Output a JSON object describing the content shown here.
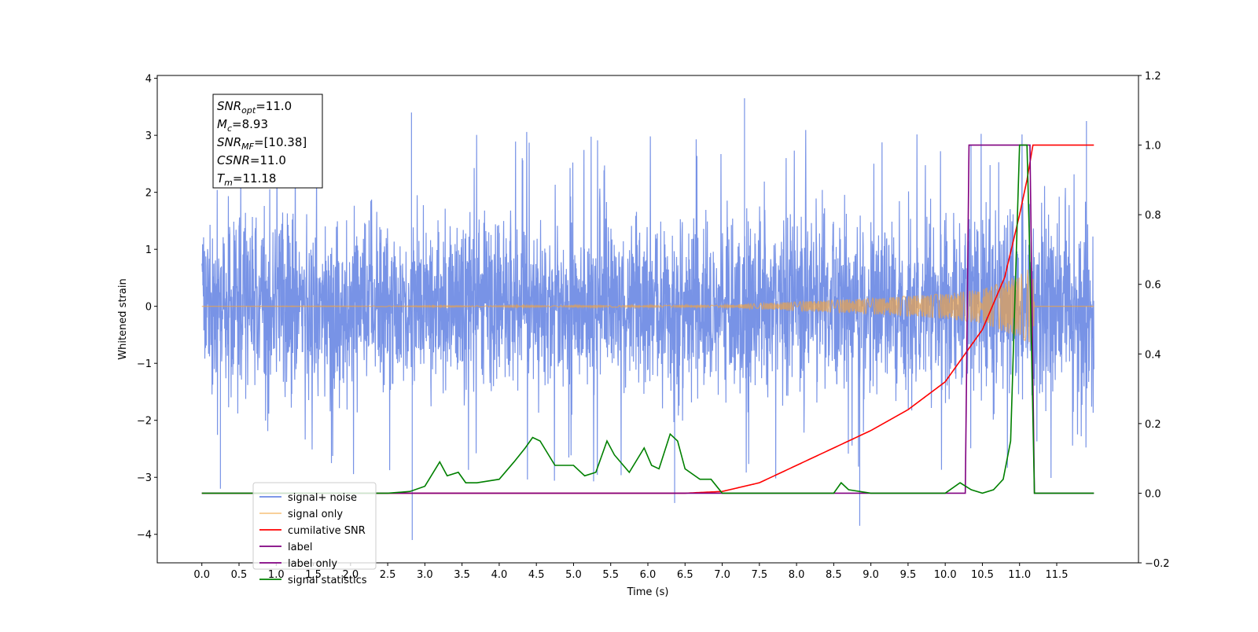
{
  "chart_data": {
    "type": "line",
    "xlabel": "Time (s)",
    "ylabel": "Whitened strain",
    "xlim": [
      -0.6,
      12.6
    ],
    "ylim": [
      -4.5,
      4.05
    ],
    "y2lim": [
      -0.2,
      1.2
    ],
    "xticks": [
      0.0,
      0.5,
      1.0,
      1.5,
      2.0,
      2.5,
      3.0,
      3.5,
      4.0,
      4.5,
      5.0,
      5.5,
      6.0,
      6.5,
      7.0,
      7.5,
      8.0,
      8.5,
      9.0,
      9.5,
      10.0,
      10.5,
      11.0,
      11.5
    ],
    "xtick_labels": [
      "0.0",
      "0.5",
      "1.0",
      "1.5",
      "2.0",
      "2.5",
      "3.0",
      "3.5",
      "4.0",
      "4.5",
      "5.0",
      "5.5",
      "6.0",
      "6.5",
      "7.0",
      "7.5",
      "8.0",
      "8.5",
      "9.0",
      "9.5",
      "10.0",
      "10.5",
      "11.0",
      "11.5"
    ],
    "yticks": [
      -4,
      -3,
      -2,
      -1,
      0,
      1,
      2,
      3,
      4
    ],
    "ytick_labels": [
      "−4",
      "−3",
      "−2",
      "−1",
      "0",
      "1",
      "2",
      "3",
      "4"
    ],
    "y2ticks": [
      -0.2,
      0.0,
      0.2,
      0.4,
      0.6,
      0.8,
      1.0,
      1.2
    ],
    "y2tick_labels": [
      "−0.2",
      "0.0",
      "0.2",
      "0.4",
      "0.6",
      "0.8",
      "1.0",
      "1.2"
    ],
    "grid": false,
    "legend_position": "bottom-left",
    "annotation_lines": [
      {
        "var": "SNR",
        "sub": "opt",
        "value": "=11.0"
      },
      {
        "var": "M",
        "sub": "c",
        "value": "=8.93"
      },
      {
        "var": "SNR",
        "sub": "MF",
        "value": "=[10.38]"
      },
      {
        "var": "CSNR",
        "sub": "",
        "value": "=11.0"
      },
      {
        "var": "T",
        "sub": "m",
        "value": "=11.18"
      }
    ],
    "series": [
      {
        "name": "signal+ noise",
        "axis": "left",
        "color": "#6c8ae4",
        "x_range": [
          0.0,
          12.0
        ],
        "amplitude_envelope": 2.1,
        "notable_peaks": [
          [
            0.25,
            -3.2
          ],
          [
            2.82,
            3.4
          ],
          [
            2.83,
            -4.1
          ],
          [
            7.3,
            3.65
          ],
          [
            8.85,
            -3.85
          ],
          [
            6.36,
            -3.45
          ],
          [
            11.9,
            3.25
          ]
        ]
      },
      {
        "name": "signal only",
        "axis": "left",
        "color": "#f2a540",
        "x": [
          0.0,
          7.0,
          8.0,
          9.0,
          10.0,
          10.5,
          11.0,
          11.18,
          11.2,
          12.0
        ],
        "envelope": [
          0.0,
          0.02,
          0.08,
          0.14,
          0.22,
          0.3,
          0.55,
          0.7,
          0.0,
          0.0
        ]
      },
      {
        "name": "cumilative SNR",
        "axis": "right",
        "color": "#ff0000",
        "x": [
          0.0,
          6.5,
          7.0,
          7.5,
          8.0,
          8.5,
          9.0,
          9.5,
          10.0,
          10.5,
          10.8,
          11.0,
          11.1,
          11.18,
          12.0
        ],
        "y": [
          0.0,
          0.0,
          0.005,
          0.03,
          0.08,
          0.13,
          0.18,
          0.24,
          0.32,
          0.47,
          0.62,
          0.8,
          0.9,
          1.0,
          1.0
        ]
      },
      {
        "name": "label",
        "axis": "right",
        "color": "#800080",
        "x": [
          0.0,
          10.27,
          10.32,
          11.14,
          11.2,
          12.0
        ],
        "y": [
          0.0,
          0.0,
          1.0,
          1.0,
          0.0,
          0.0
        ]
      },
      {
        "name": "label only",
        "axis": "right",
        "color": "#800080",
        "x": [],
        "y": []
      },
      {
        "name": "signal statistics",
        "axis": "right",
        "color": "#008000",
        "x": [
          0.0,
          2.5,
          2.8,
          3.0,
          3.2,
          3.3,
          3.45,
          3.55,
          3.7,
          4.0,
          4.2,
          4.35,
          4.45,
          4.55,
          4.75,
          5.0,
          5.15,
          5.3,
          5.45,
          5.55,
          5.75,
          5.95,
          6.05,
          6.15,
          6.3,
          6.4,
          6.5,
          6.7,
          6.85,
          7.0,
          8.5,
          8.6,
          8.7,
          9.0,
          10.0,
          10.2,
          10.35,
          10.5,
          10.65,
          10.78,
          10.88,
          11.0,
          11.1,
          11.13,
          11.2,
          12.0
        ],
        "y": [
          0.0,
          0.0,
          0.005,
          0.02,
          0.09,
          0.05,
          0.06,
          0.03,
          0.03,
          0.04,
          0.09,
          0.13,
          0.16,
          0.15,
          0.08,
          0.08,
          0.05,
          0.06,
          0.15,
          0.11,
          0.06,
          0.13,
          0.08,
          0.07,
          0.17,
          0.15,
          0.07,
          0.04,
          0.04,
          0.0,
          0.0,
          0.03,
          0.01,
          0.0,
          0.0,
          0.03,
          0.01,
          0.0,
          0.01,
          0.04,
          0.15,
          1.0,
          1.0,
          0.75,
          0.0,
          0.0
        ]
      }
    ]
  }
}
